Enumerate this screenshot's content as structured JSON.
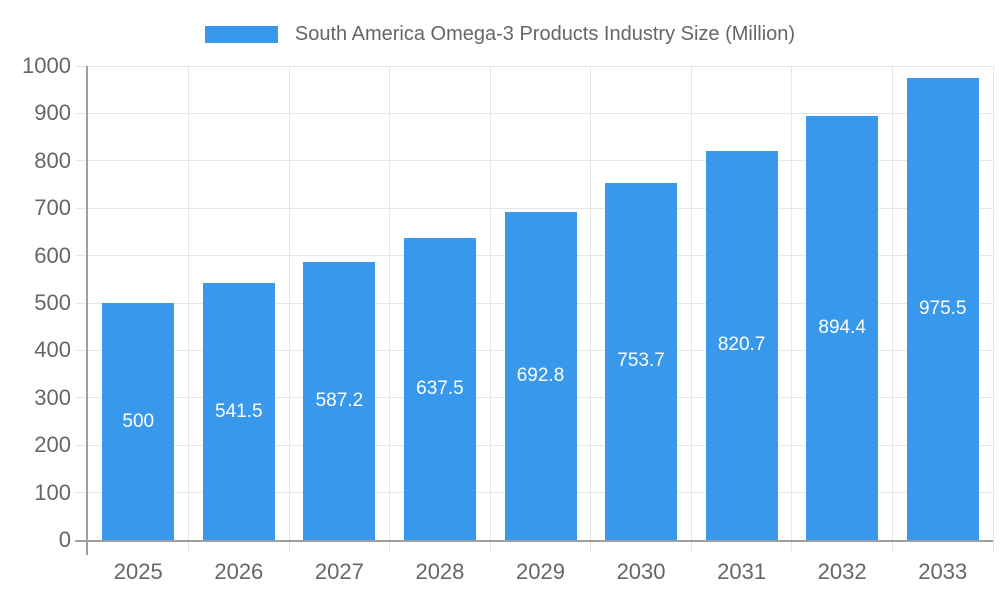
{
  "chart_data": {
    "type": "bar",
    "title": "South America Omega-3 Products Industry Size (Million)",
    "categories": [
      "2025",
      "2026",
      "2027",
      "2028",
      "2029",
      "2030",
      "2031",
      "2032",
      "2033"
    ],
    "values": [
      500,
      541.5,
      587.2,
      637.5,
      692.8,
      753.7,
      820.7,
      894.4,
      975.5
    ],
    "value_labels": [
      "500",
      "541.5",
      "587.2",
      "637.5",
      "692.8",
      "753.7",
      "820.7",
      "894.4",
      "975.5"
    ],
    "xlabel": "",
    "ylabel": "",
    "ylim": [
      0,
      1000
    ],
    "yticks": [
      0,
      100,
      200,
      300,
      400,
      500,
      600,
      700,
      800,
      900,
      1000
    ],
    "legend_position": "top",
    "grid": true,
    "colors": {
      "bar": "#3898EC",
      "grid_line": "#E6E6E6",
      "axis_line": "#9E9E9E",
      "text": "#666666",
      "value_label": "#FFFFFF",
      "background": "#FFFFFF"
    }
  }
}
